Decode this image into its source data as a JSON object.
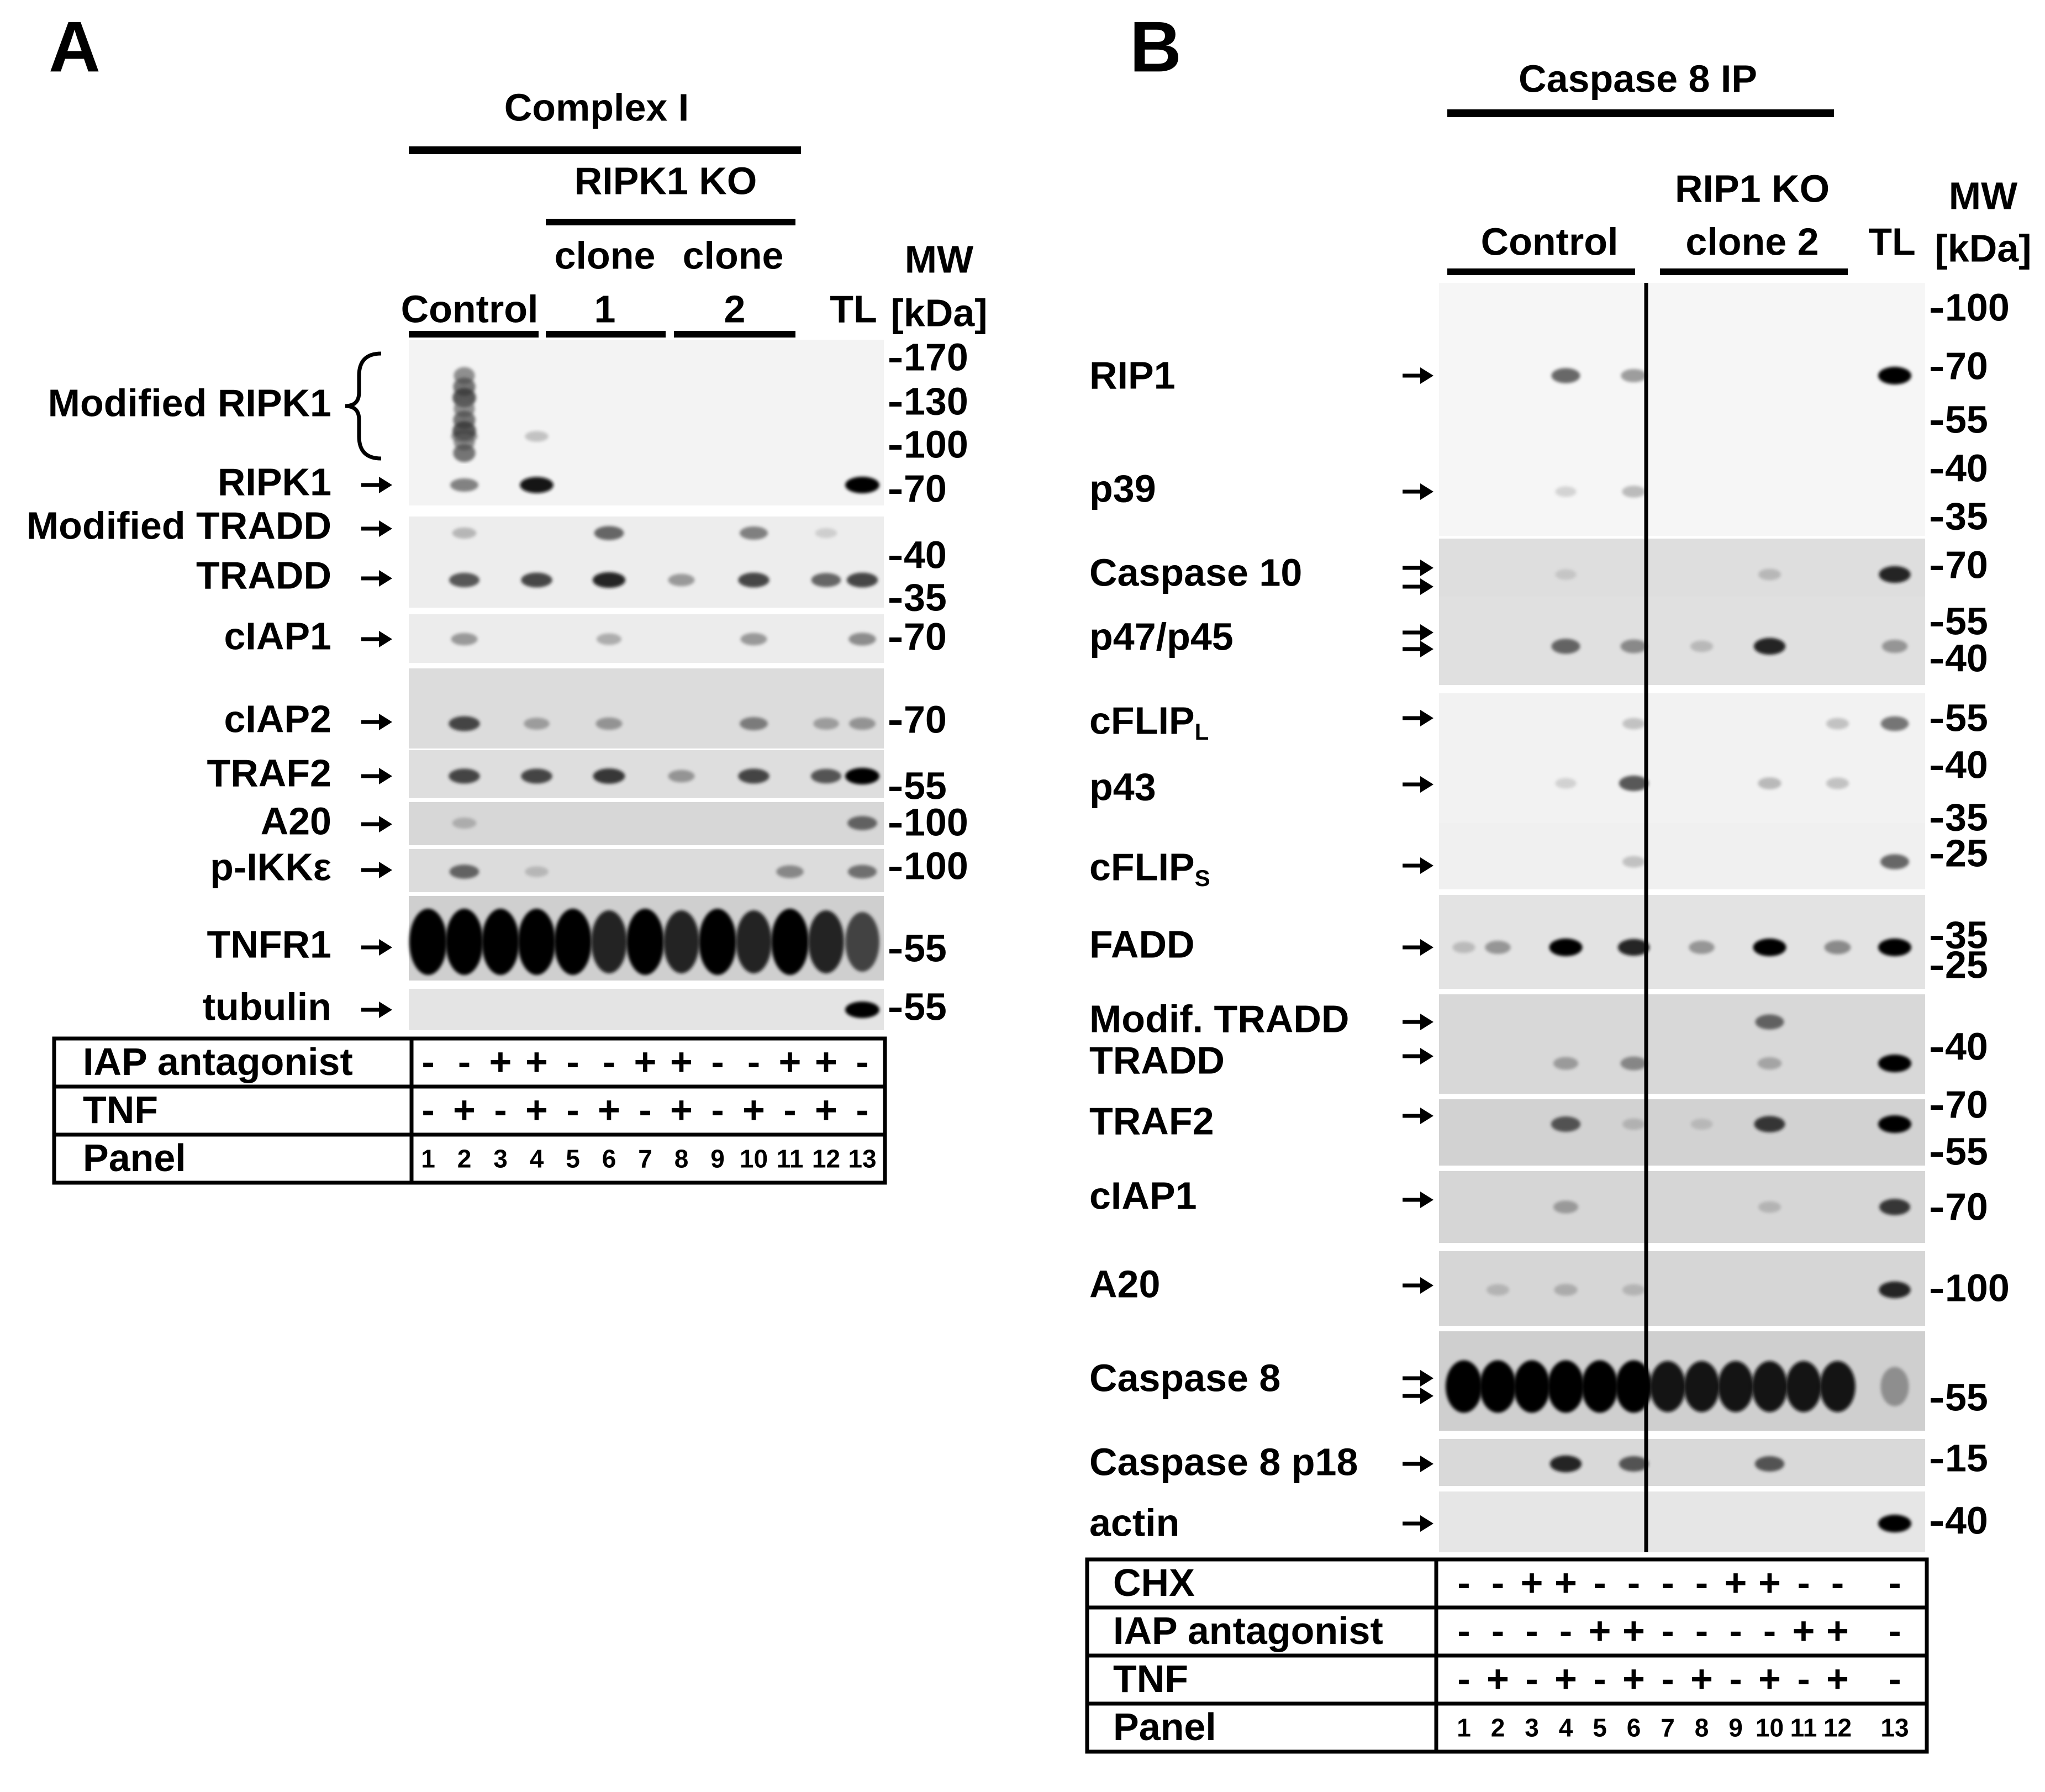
{
  "panel_a": {
    "letter": "A",
    "header": "Complex I",
    "ko_header": "RIPK1 KO",
    "clone_label": "clone",
    "group_labels": [
      "Control",
      "1",
      "2",
      "TL"
    ],
    "mw_title": [
      "MW",
      "[kDa]"
    ],
    "rows": [
      {
        "label": "Modified RIPK1",
        "arrows": 0,
        "mw": [
          "170",
          "130",
          "100"
        ],
        "bands": [
          [
            2,
            0.5
          ],
          [
            4,
            0.3
          ]
        ]
      },
      {
        "label": "RIPK1",
        "arrows": 1,
        "mw": [
          "70"
        ],
        "bands": [
          [
            2,
            0.6
          ],
          [
            4,
            0.95
          ],
          [
            13,
            1.0
          ]
        ]
      },
      {
        "label": "Modified TRADD",
        "arrows": 1,
        "mw": [],
        "bands": [
          [
            2,
            0.35
          ],
          [
            6,
            0.7
          ],
          [
            10,
            0.6
          ],
          [
            12,
            0.2
          ]
        ]
      },
      {
        "label": "TRADD",
        "arrows": 1,
        "mw": [
          "40",
          "35"
        ],
        "bands": [
          [
            2,
            0.75
          ],
          [
            4,
            0.8
          ],
          [
            6,
            0.9
          ],
          [
            8,
            0.5
          ],
          [
            10,
            0.8
          ],
          [
            12,
            0.7
          ],
          [
            13,
            0.8
          ]
        ]
      },
      {
        "label": "cIAP1",
        "arrows": 1,
        "mw": [
          "70"
        ],
        "bands": [
          [
            2,
            0.5
          ],
          [
            6,
            0.4
          ],
          [
            10,
            0.5
          ],
          [
            13,
            0.55
          ]
        ]
      },
      {
        "label": "cIAP2",
        "arrows": 1,
        "mw": [
          "70"
        ],
        "bands": [
          [
            2,
            0.8
          ],
          [
            4,
            0.45
          ],
          [
            6,
            0.5
          ],
          [
            10,
            0.6
          ],
          [
            12,
            0.45
          ],
          [
            13,
            0.5
          ]
        ]
      },
      {
        "label": "TRAF2",
        "arrows": 1,
        "mw": [
          "55"
        ],
        "bands": [
          [
            2,
            0.8
          ],
          [
            4,
            0.8
          ],
          [
            6,
            0.85
          ],
          [
            8,
            0.5
          ],
          [
            10,
            0.8
          ],
          [
            12,
            0.75
          ],
          [
            13,
            1.0
          ]
        ]
      },
      {
        "label": "A20",
        "arrows": 1,
        "mw": [
          "100"
        ],
        "bands": [
          [
            2,
            0.35
          ],
          [
            13,
            0.7
          ]
        ]
      },
      {
        "label": "p-IKKε",
        "arrows": 1,
        "mw": [
          "100"
        ],
        "bands": [
          [
            2,
            0.7
          ],
          [
            4,
            0.3
          ],
          [
            11,
            0.55
          ],
          [
            13,
            0.65
          ]
        ]
      },
      {
        "label": "TNFR1",
        "arrows": 1,
        "mw": [
          "55"
        ],
        "bands": [
          [
            1,
            1
          ],
          [
            2,
            1
          ],
          [
            3,
            1
          ],
          [
            4,
            1
          ],
          [
            5,
            1
          ],
          [
            6,
            0.9
          ],
          [
            7,
            1
          ],
          [
            8,
            0.9
          ],
          [
            9,
            1
          ],
          [
            10,
            0.9
          ],
          [
            11,
            1
          ],
          [
            12,
            0.9
          ],
          [
            13,
            0.8
          ]
        ]
      },
      {
        "label": "tubulin",
        "arrows": 1,
        "mw": [
          "55"
        ],
        "bands": [
          [
            13,
            1.0
          ]
        ]
      }
    ],
    "table": [
      {
        "label": "IAP antagonist",
        "values": [
          "-",
          "-",
          "+",
          "+",
          "-",
          "-",
          "+",
          "+",
          "-",
          "-",
          "+",
          "+",
          "-"
        ]
      },
      {
        "label": "TNF",
        "values": [
          "-",
          "+",
          "-",
          "+",
          "-",
          "+",
          "-",
          "+",
          "-",
          "+",
          "-",
          "+",
          "-"
        ]
      },
      {
        "label": "Panel",
        "values": [
          "1",
          "2",
          "3",
          "4",
          "5",
          "6",
          "7",
          "8",
          "9",
          "10",
          "11",
          "12",
          "13"
        ]
      }
    ]
  },
  "panel_b": {
    "letter": "B",
    "header": "Caspase 8 IP",
    "group_labels": [
      "Control",
      "RIP1 KO",
      "clone 2",
      "TL"
    ],
    "mw_title": [
      "MW",
      "[kDa]"
    ],
    "rows": [
      {
        "label": "RIP1",
        "arrows": 1,
        "mw": [
          "100",
          "70",
          "55"
        ],
        "bands": [
          [
            4,
            0.7
          ],
          [
            6,
            0.5
          ],
          [
            13,
            1.0
          ]
        ]
      },
      {
        "label": "p39",
        "arrows": 1,
        "mw": [
          "40",
          "35"
        ],
        "bands": [
          [
            4,
            0.2
          ],
          [
            6,
            0.35
          ]
        ]
      },
      {
        "label": "Caspase 10",
        "arrows": 2,
        "mw": [
          "70"
        ],
        "bands": [
          [
            4,
            0.2
          ],
          [
            10,
            0.3
          ],
          [
            13,
            0.9
          ]
        ]
      },
      {
        "label": "p47/p45",
        "arrows": 2,
        "mw": [
          "55",
          "40"
        ],
        "bands": [
          [
            4,
            0.7
          ],
          [
            6,
            0.55
          ],
          [
            8,
            0.3
          ],
          [
            10,
            0.9
          ],
          [
            13,
            0.5
          ]
        ]
      },
      {
        "label": "cFLIP",
        "sub": "L",
        "arrows": 1,
        "mw": [
          "55"
        ],
        "bands": [
          [
            6,
            0.3
          ],
          [
            12,
            0.3
          ],
          [
            13,
            0.65
          ]
        ]
      },
      {
        "label": "p43",
        "arrows": 1,
        "mw": [
          "40",
          "35"
        ],
        "bands": [
          [
            4,
            0.2
          ],
          [
            6,
            0.75
          ],
          [
            10,
            0.35
          ],
          [
            12,
            0.3
          ]
        ]
      },
      {
        "label": "cFLIP",
        "sub": "S",
        "arrows": 1,
        "mw": [
          "25"
        ],
        "bands": [
          [
            6,
            0.3
          ],
          [
            13,
            0.7
          ]
        ]
      },
      {
        "label": "FADD",
        "arrows": 1,
        "mw": [
          "35",
          "25"
        ],
        "bands": [
          [
            1,
            0.3
          ],
          [
            2,
            0.5
          ],
          [
            4,
            1.0
          ],
          [
            6,
            0.9
          ],
          [
            8,
            0.5
          ],
          [
            10,
            1.0
          ],
          [
            12,
            0.55
          ],
          [
            13,
            1.0
          ]
        ]
      },
      {
        "label": "Modif. TRADD",
        "arrows": 1,
        "mw": [],
        "bands": [
          [
            10,
            0.7
          ]
        ]
      },
      {
        "label": "TRADD",
        "arrows": 1,
        "mw": [
          "40"
        ],
        "bands": [
          [
            4,
            0.45
          ],
          [
            6,
            0.55
          ],
          [
            10,
            0.4
          ],
          [
            13,
            1.0
          ]
        ]
      },
      {
        "label": "TRAF2",
        "arrows": 1,
        "mw": [
          "70",
          "55"
        ],
        "bands": [
          [
            4,
            0.75
          ],
          [
            6,
            0.3
          ],
          [
            8,
            0.25
          ],
          [
            10,
            0.85
          ],
          [
            13,
            1.0
          ]
        ]
      },
      {
        "label": "cIAP1",
        "arrows": 1,
        "mw": [
          "70"
        ],
        "bands": [
          [
            4,
            0.45
          ],
          [
            10,
            0.3
          ],
          [
            13,
            0.85
          ]
        ]
      },
      {
        "label": "A20",
        "arrows": 1,
        "mw": [
          "100"
        ],
        "bands": [
          [
            2,
            0.3
          ],
          [
            4,
            0.35
          ],
          [
            6,
            0.3
          ],
          [
            13,
            0.9
          ]
        ]
      },
      {
        "label": "Caspase 8",
        "arrows": 2,
        "mw": [
          "55"
        ],
        "bands": [
          [
            1,
            1
          ],
          [
            2,
            1
          ],
          [
            3,
            1
          ],
          [
            4,
            1
          ],
          [
            5,
            1
          ],
          [
            6,
            1
          ],
          [
            7,
            0.95
          ],
          [
            8,
            0.95
          ],
          [
            9,
            0.95
          ],
          [
            10,
            0.95
          ],
          [
            11,
            0.95
          ],
          [
            12,
            0.95
          ],
          [
            13,
            0.5
          ]
        ]
      },
      {
        "label": "Caspase 8 p18",
        "arrows": 1,
        "mw": [
          "15"
        ],
        "bands": [
          [
            4,
            0.9
          ],
          [
            6,
            0.75
          ],
          [
            10,
            0.75
          ]
        ]
      },
      {
        "label": "actin",
        "arrows": 1,
        "mw": [
          "40"
        ],
        "bands": [
          [
            13,
            1.0
          ]
        ]
      }
    ],
    "table": [
      {
        "label": "CHX",
        "values": [
          "-",
          "-",
          "+",
          "+",
          "-",
          "-",
          "-",
          "-",
          "+",
          "+",
          "-",
          "-",
          "-"
        ]
      },
      {
        "label": "IAP antagonist",
        "values": [
          "-",
          "-",
          "-",
          "-",
          "+",
          "+",
          "-",
          "-",
          "-",
          "-",
          "+",
          "+",
          "-"
        ]
      },
      {
        "label": "TNF",
        "values": [
          "-",
          "+",
          "-",
          "+",
          "-",
          "+",
          "-",
          "+",
          "-",
          "+",
          "-",
          "+",
          "-"
        ]
      },
      {
        "label": "Panel",
        "values": [
          "1",
          "2",
          "3",
          "4",
          "5",
          "6",
          "7",
          "8",
          "9",
          "10",
          "11",
          "12",
          "13"
        ]
      }
    ]
  }
}
